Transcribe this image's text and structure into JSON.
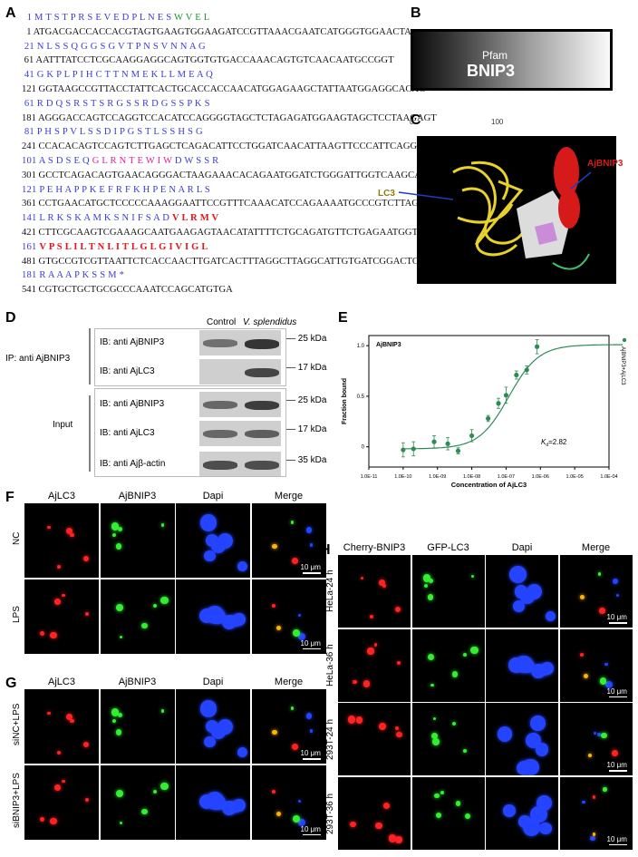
{
  "panels": {
    "a": "A",
    "b": "B",
    "c": "C",
    "d": "D",
    "e": "E",
    "f": "F",
    "g": "G",
    "h": "H"
  },
  "sequence": {
    "lines": [
      {
        "type": "aa",
        "num": "1",
        "text": "M T S T P R S E V E D P L N E S ",
        "green": "W V E L",
        "pink": "",
        "red": ""
      },
      {
        "type": "nt",
        "num": "1",
        "text": "ATGACGACCACCACGTAGTGAAGTGGAAGATCCGTTAAACGAATCATGGGTGGAACTA"
      },
      {
        "type": "aa",
        "num": "21",
        "text": "N L S S Q G G S G V T P N S V N N A G",
        "green": "",
        "pink": "",
        "red": ""
      },
      {
        "type": "nt",
        "num": "61",
        "text": "AATTTATCCTCGCAAGGAGGCAGTGGTGTGACCAAACAGTGTCAACAATGCCGGT"
      },
      {
        "type": "aa",
        "num": "41",
        "text": "G K P L P I H C T T N M E K L L M E A Q",
        "green": "",
        "pink": "",
        "red": ""
      },
      {
        "type": "nt",
        "num": "121",
        "text": "GGTAAGCCGTTACCTATTCACTGCACCACCAACATGGAGAAGCTATTAATGGAGGCACAG"
      },
      {
        "type": "aa",
        "num": "61",
        "text": "R D Q S R S T S R G S S R D G S S P K S",
        "green": "",
        "pink": "",
        "red": ""
      },
      {
        "type": "nt",
        "num": "181",
        "text": "AGGGACCAGTCCAGGTCCACATCCAGGGGTAGCTCTAGAGATGGAAGTAGCTCCTAAGAGT"
      },
      {
        "type": "aa",
        "num": "81",
        "text": "P H S P V L S S D I P G S T L S S H S G",
        "green": "",
        "pink": "",
        "red": ""
      },
      {
        "type": "nt",
        "num": "241",
        "text": "CCACACAGTCCAGTCTTGAGCTCAGACATTCCTGGATCAACATTAAGTTCCCATTCAGGT"
      },
      {
        "type": "aa",
        "num": "101",
        "text": "A S D S E Q ",
        "green": "",
        "pink": "G L R N T E W I W",
        "red": "",
        "tail": " D W S S R"
      },
      {
        "type": "nt",
        "num": "301",
        "text": "GCCTCAGACAGTGAACAGGGACTAAGAAACACAGAATGGATCTGGGATTGGTCAAGCAGG"
      },
      {
        "type": "aa",
        "num": "121",
        "text": "P E H A P P K E F R F K H P E N A R L S",
        "green": "",
        "pink": "",
        "red": ""
      },
      {
        "type": "nt",
        "num": "361",
        "text": "CCTGAACATGCTCCCCCAAAGGAATTCCGTTTCAAACATCCAGAAAATGCCCGTCTTAGT"
      },
      {
        "type": "aa",
        "num": "141",
        "text": "L R K S K A M K S N I F S A D ",
        "green": "",
        "pink": "",
        "red": "V L R M V"
      },
      {
        "type": "nt",
        "num": "421",
        "text": "CTTCGCAAGTCGAAAGCAATGAAGAGTAACATATTTTCTGCAGATGTTCTGAGAATGGTT"
      },
      {
        "type": "aa",
        "num": "161",
        "text": "",
        "green": "",
        "pink": "",
        "red": "V P S L I L T N L I T L G L G I V I G L"
      },
      {
        "type": "nt",
        "num": "481",
        "text": "GTGCCGTCGTTAATTCTCACCAACTTGATCACTTTAGGCTTAGGCATTGTGATCGGACTC"
      },
      {
        "type": "aa",
        "num": "181",
        "text": "R A A A P K S S M *",
        "green": "",
        "pink": "",
        "red": ""
      },
      {
        "type": "nt",
        "num": "541",
        "text": "CGTGCTGCTGCGCCCAAATCCAGCATGTGA"
      }
    ]
  },
  "panel_b": {
    "domain_label": "Pfam",
    "domain_name": "BNIP3",
    "tick_0": "0",
    "tick_100": "100"
  },
  "panel_c": {
    "label_lc3": "LC3",
    "label_ajbnip3": "AjBNIP3"
  },
  "panel_d": {
    "col_control": "Control",
    "col_vs": "V. splendidus",
    "ip_label": "IP: anti AjBNIP3",
    "input_label": "Input",
    "rows": [
      {
        "ib": "IB: anti AjBNIP3",
        "kda": "25 kDa"
      },
      {
        "ib": "IB: anti AjLC3",
        "kda": "17 kDa"
      },
      {
        "ib": "IB: anti AjBNIP3",
        "kda": "25 kDa"
      },
      {
        "ib": "IB: anti AjLC3",
        "kda": "17 kDa"
      },
      {
        "ib": "IB: anti Ajβ-actin",
        "kda": "35 kDa"
      }
    ]
  },
  "panel_e": {
    "title": "AjBNIP3",
    "legend": "AjBNIP3+AjLC3",
    "kd_label": "K",
    "kd_sub": "d",
    "kd_value": "=2.82",
    "xlabel": "Concentration of AjLC3",
    "ylabel": "Fraction bound",
    "xticks": [
      "1.0E-11",
      "1.0E-10",
      "1.0E-09",
      "1.0E-08",
      "1.0E-07",
      "1.0E-06",
      "1.0E-05",
      "1.0E-04"
    ],
    "yticks": [
      "0",
      "0.5",
      "1.0"
    ]
  },
  "chart_data": {
    "type": "scatter",
    "title": "AjBNIP3",
    "xlabel": "Concentration of AjLC3",
    "ylabel": "Fraction bound",
    "xscale": "log",
    "xlim": [
      1e-11,
      0.0001
    ],
    "ylim": [
      -0.2,
      1.1
    ],
    "series": [
      {
        "name": "AjBNIP3+AjLC3",
        "color": "#2e8b57",
        "x": [
          1e-10,
          2e-10,
          8e-10,
          2e-09,
          4e-09,
          1e-08,
          3e-08,
          6e-08,
          1e-07,
          2e-07,
          4e-07,
          8e-07
        ],
        "y": [
          -0.03,
          -0.02,
          0.05,
          0.03,
          -0.04,
          0.11,
          0.28,
          0.43,
          0.51,
          0.71,
          0.76,
          0.99
        ],
        "err": [
          0.07,
          0.07,
          0.06,
          0.06,
          0.03,
          0.06,
          0.03,
          0.05,
          0.08,
          0.04,
          0.04,
          0.07
        ]
      }
    ]
  },
  "panel_f": {
    "cols": [
      "AjLC3",
      "AjBNIP3",
      "Dapi",
      "Merge"
    ],
    "rows": [
      "NC",
      "LPS"
    ],
    "scale": "10 μm"
  },
  "panel_g": {
    "cols": [
      "AjLC3",
      "AjBNIP3",
      "Dapi",
      "Merge"
    ],
    "rows": [
      "siNC+LPS",
      "siBNIP3+LPS"
    ],
    "scale": "10 μm"
  },
  "panel_h": {
    "cols": [
      "Cherry-BNIP3",
      "GFP-LC3",
      "Dapi",
      "Merge"
    ],
    "rows": [
      "HeLa-24 h",
      "HeLa-36 h",
      "293T-24 h",
      "293T-36 h"
    ],
    "scale": "10 μm"
  }
}
